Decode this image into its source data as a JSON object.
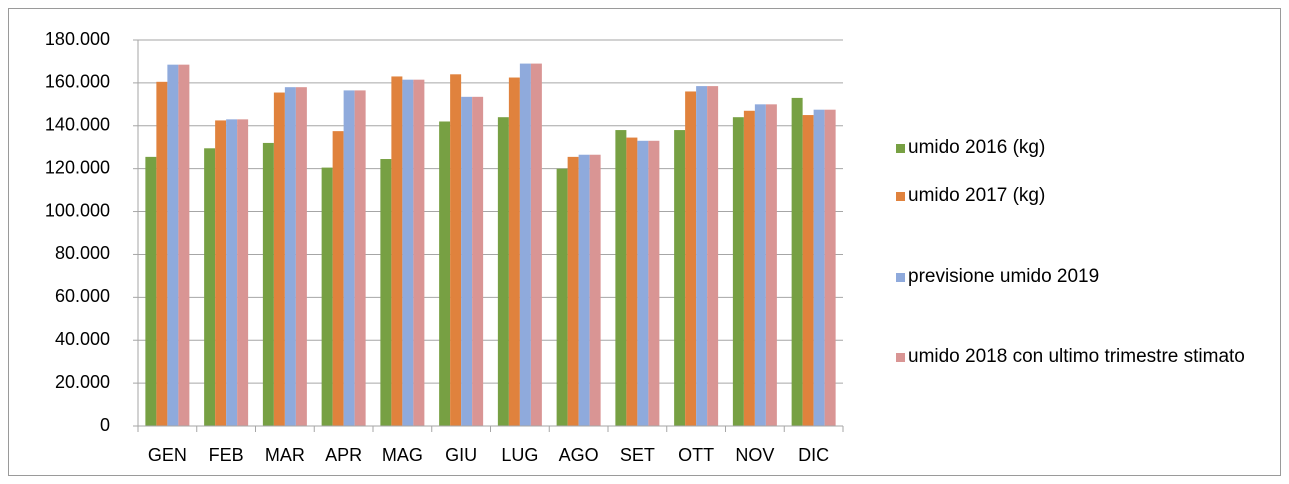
{
  "chart_data": {
    "type": "bar",
    "categories": [
      "GEN",
      "FEB",
      "MAR",
      "APR",
      "MAG",
      "GIU",
      "LUG",
      "AGO",
      "SET",
      "OTT",
      "NOV",
      "DIC"
    ],
    "series": [
      {
        "name": "umido 2016 (kg)",
        "color": "#77a043",
        "values": [
          125500,
          129500,
          132000,
          120500,
          124500,
          142000,
          144000,
          120000,
          138000,
          138000,
          144000,
          153000
        ]
      },
      {
        "name": "umido 2017 (kg)",
        "color": "#e0823d",
        "values": [
          160500,
          142500,
          155500,
          137500,
          163000,
          164000,
          162500,
          125500,
          134500,
          156000,
          147000,
          145000
        ]
      },
      {
        "name": "previsione umido 2019",
        "color": "#8faadc",
        "values": [
          168500,
          143000,
          158000,
          156500,
          161500,
          153500,
          169000,
          126500,
          133000,
          158500,
          150000,
          147500
        ]
      },
      {
        "name": "umido 2018 con ultimo trimestre stimato",
        "color": "#d99594",
        "values": [
          168500,
          143000,
          158000,
          156500,
          161500,
          153500,
          169000,
          126500,
          133000,
          158500,
          150000,
          147500
        ]
      }
    ],
    "ylim": [
      0,
      180000
    ],
    "yticks": [
      0,
      {
        "value": 20000,
        "label": "20.000"
      },
      {
        "value": 40000,
        "label": "40.000"
      },
      {
        "value": 60000,
        "label": "60.000"
      },
      {
        "value": 80000,
        "label": "80.000"
      },
      {
        "value": 100000,
        "label": "100.000"
      },
      {
        "value": 120000,
        "label": "120.000"
      },
      {
        "value": 140000,
        "label": "140.000"
      },
      {
        "value": 160000,
        "label": "160.000"
      },
      {
        "value": 180000,
        "label": "180.000"
      }
    ],
    "grid": true,
    "legend": "right"
  }
}
